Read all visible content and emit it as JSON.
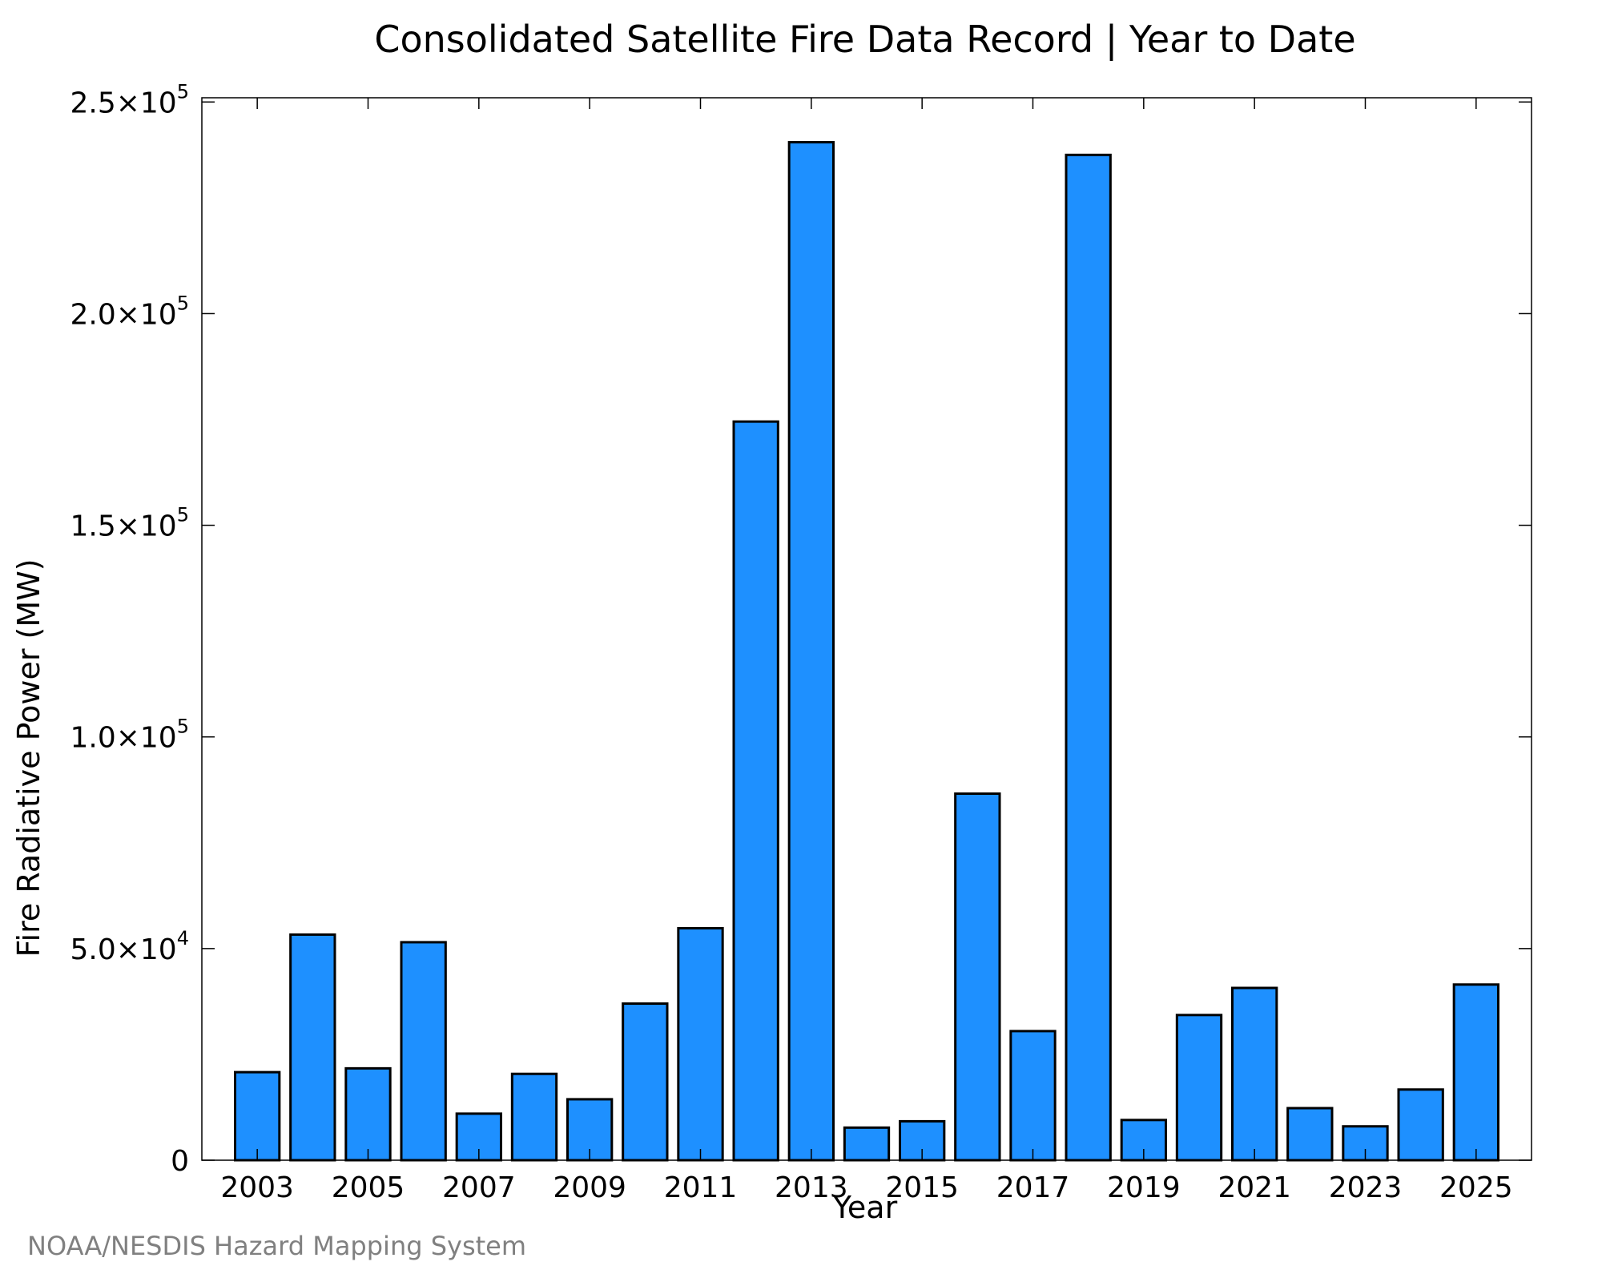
{
  "chart_data": {
    "type": "bar",
    "title": "Consolidated Satellite Fire Data Record | Year to Date",
    "xlabel": "Year",
    "ylabel": "Fire Radiative Power (MW)",
    "source": "NOAA/NESDIS Hazard Mapping System",
    "bar_color": "#1E90FF",
    "edge_color": "#000000",
    "categories": [
      "2003",
      "2004",
      "2005",
      "2006",
      "2007",
      "2008",
      "2009",
      "2010",
      "2011",
      "2012",
      "2013",
      "2014",
      "2015",
      "2016",
      "2017",
      "2018",
      "2019",
      "2020",
      "2021",
      "2022",
      "2023",
      "2024",
      "2025"
    ],
    "values": [
      20800,
      53300,
      21700,
      51500,
      11000,
      20400,
      14400,
      37000,
      54800,
      174500,
      240500,
      7700,
      9200,
      86600,
      30500,
      237500,
      9500,
      34300,
      40700,
      12300,
      8000,
      16700,
      41500
    ],
    "xticks": [
      "2003",
      "2005",
      "2007",
      "2009",
      "2011",
      "2013",
      "2015",
      "2017",
      "2019",
      "2021",
      "2023",
      "2025"
    ],
    "ylim": [
      0,
      251000
    ],
    "yticks": [
      {
        "value": 0,
        "mantissa": "0",
        "exp": ""
      },
      {
        "value": 50000,
        "mantissa": "5.0×10",
        "exp": "4"
      },
      {
        "value": 100000,
        "mantissa": "1.0×10",
        "exp": "5"
      },
      {
        "value": 150000,
        "mantissa": "1.5×10",
        "exp": "5"
      },
      {
        "value": 200000,
        "mantissa": "2.0×10",
        "exp": "5"
      },
      {
        "value": 250000,
        "mantissa": "2.5×10",
        "exp": "5"
      }
    ],
    "grid": false,
    "legend": "none"
  }
}
